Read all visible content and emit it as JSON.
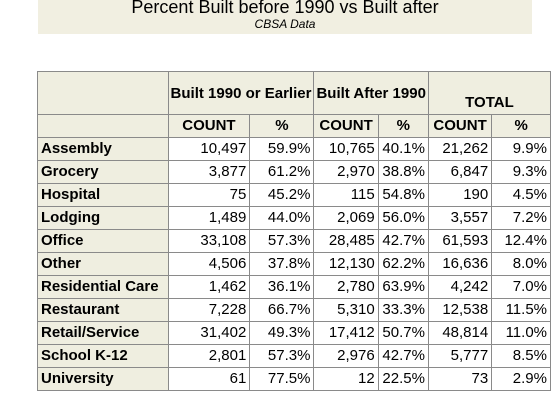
{
  "title": "Percent Built before 1990 vs Built after",
  "subtitle": "CBSA Data",
  "table": {
    "group_headers": [
      "Built 1990 or Earlier",
      "Built After 1990",
      "TOTAL"
    ],
    "sub_headers": [
      "COUNT",
      "%",
      "COUNT",
      "%",
      "COUNT",
      "%"
    ],
    "rows": [
      {
        "label": "Assembly",
        "cells": [
          "10,497",
          "59.9%",
          "10,765",
          "40.1%",
          "21,262",
          "9.9%"
        ]
      },
      {
        "label": "Grocery",
        "cells": [
          "3,877",
          "61.2%",
          "2,970",
          "38.8%",
          "6,847",
          "9.3%"
        ]
      },
      {
        "label": "Hospital",
        "cells": [
          "75",
          "45.2%",
          "115",
          "54.8%",
          "190",
          "4.5%"
        ]
      },
      {
        "label": "Lodging",
        "cells": [
          "1,489",
          "44.0%",
          "2,069",
          "56.0%",
          "3,557",
          "7.2%"
        ]
      },
      {
        "label": "Office",
        "cells": [
          "33,108",
          "57.3%",
          "28,485",
          "42.7%",
          "61,593",
          "12.4%"
        ]
      },
      {
        "label": "Other",
        "cells": [
          "4,506",
          "37.8%",
          "12,130",
          "62.2%",
          "16,636",
          "8.0%"
        ]
      },
      {
        "label": "Residential Care",
        "cells": [
          "1,462",
          "36.1%",
          "2,780",
          "63.9%",
          "4,242",
          "7.0%"
        ]
      },
      {
        "label": "Restaurant",
        "cells": [
          "7,228",
          "66.7%",
          "5,310",
          "33.3%",
          "12,538",
          "11.5%"
        ]
      },
      {
        "label": "Retail/Service",
        "cells": [
          "31,402",
          "49.3%",
          "17,412",
          "50.7%",
          "48,814",
          "11.0%"
        ]
      },
      {
        "label": "School K-12",
        "cells": [
          "2,801",
          "57.3%",
          "2,976",
          "42.7%",
          "5,777",
          "8.5%"
        ]
      },
      {
        "label": "University",
        "cells": [
          "61",
          "77.5%",
          "12",
          "22.5%",
          "73",
          "2.9%"
        ]
      }
    ]
  }
}
